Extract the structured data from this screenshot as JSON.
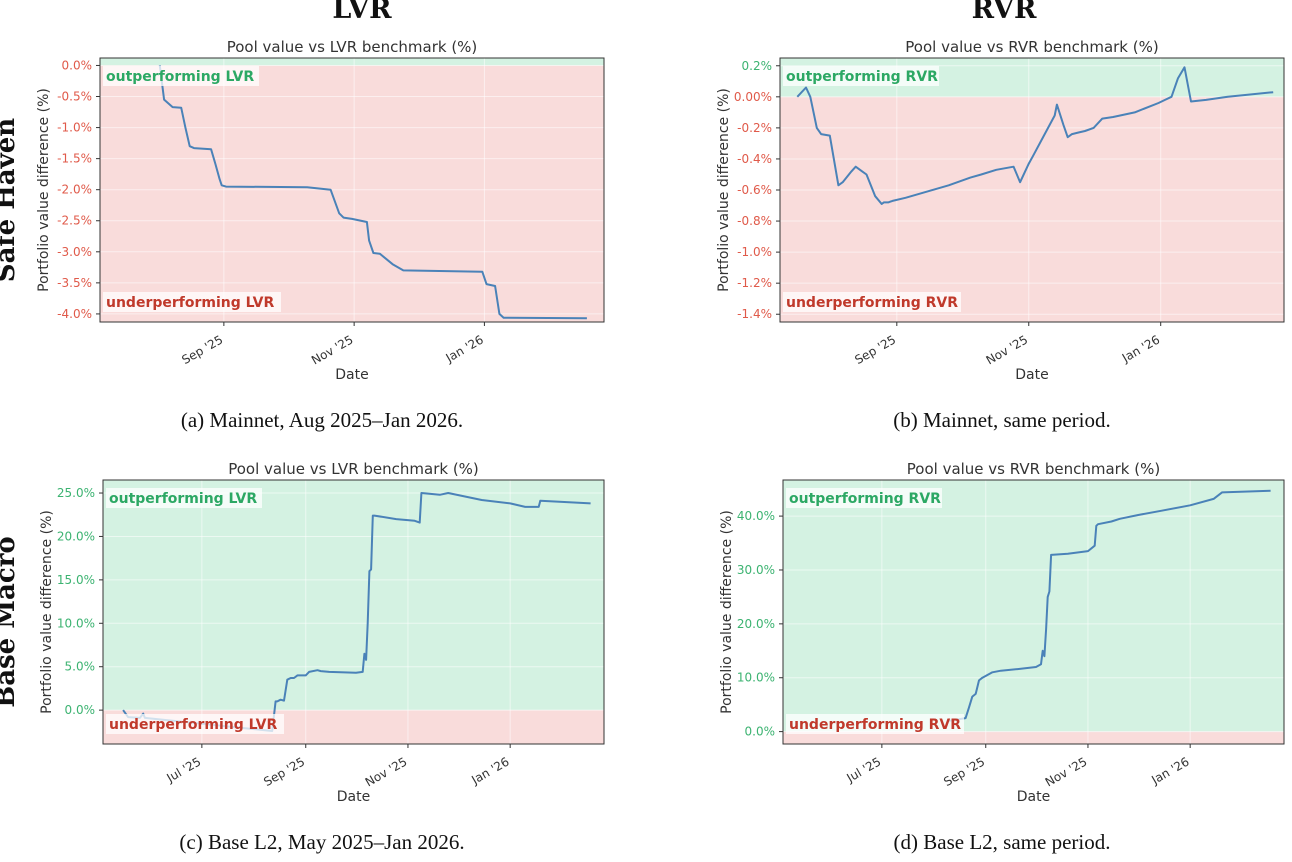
{
  "figure": {
    "column_headers": [
      "LVR",
      "RVR"
    ],
    "row_headers": [
      "Safe Haven",
      "Base Macro"
    ],
    "colors": {
      "line": "#4a82b8",
      "outperform_fill": "#d4f2e2",
      "underperform_fill": "#f9dcdb",
      "outperform_text": "#2ca864",
      "underperform_text": "#c0392b",
      "neg_tick": "#e05a4a",
      "pos_tick": "#3cb371"
    }
  },
  "chart_data": [
    {
      "type": "line",
      "panel": "a",
      "title": "Pool value vs LVR benchmark (%)",
      "xlabel": "Date",
      "ylabel": "Portfolio value difference (%)",
      "caption": "(a) Mainnet, Aug 2025–Jan 2026.",
      "outperform_label": "outperforming LVR",
      "underperform_label": "underperforming LVR",
      "x_ticks": [
        {
          "date": "2025-09-01",
          "label": "Sep '25"
        },
        {
          "date": "2025-11-01",
          "label": "Nov '25"
        },
        {
          "date": "2026-01-01",
          "label": "Jan '26"
        }
      ],
      "y_ticks": [
        0,
        -0.5,
        -1,
        -1.5,
        -2,
        -2.5,
        -3,
        -3.5,
        -4
      ],
      "y_tick_labels": [
        "0.0%",
        "-0.5%",
        "-1.0%",
        "-1.5%",
        "-2.0%",
        "-2.5%",
        "-3.0%",
        "-3.5%",
        "-4.0%"
      ],
      "xlim": [
        "2025-07-05",
        "2026-02-26"
      ],
      "ylim": [
        -4.13,
        0.12
      ],
      "series": [
        {
          "x": [
            "2025-08-02",
            "2025-08-04",
            "2025-08-08",
            "2025-08-12",
            "2025-08-14",
            "2025-08-16",
            "2025-08-18",
            "2025-08-26",
            "2025-08-28",
            "2025-08-30",
            "2025-08-31",
            "2025-09-02",
            "2025-10-10",
            "2025-10-21",
            "2025-10-25",
            "2025-10-27",
            "2025-10-31",
            "2025-11-07",
            "2025-11-08",
            "2025-11-10",
            "2025-11-13",
            "2025-11-19",
            "2025-11-24",
            "2025-12-31",
            "2026-01-02",
            "2026-01-06",
            "2026-01-08",
            "2026-01-10",
            "2026-02-18"
          ],
          "y": [
            0.0,
            -0.55,
            -0.67,
            -0.68,
            -1.0,
            -1.3,
            -1.33,
            -1.35,
            -1.58,
            -1.83,
            -1.93,
            -1.95,
            -1.96,
            -2.0,
            -2.38,
            -2.45,
            -2.47,
            -2.52,
            -2.82,
            -3.02,
            -3.03,
            -3.2,
            -3.3,
            -3.32,
            -3.52,
            -3.55,
            -4.0,
            -4.06,
            -4.07
          ]
        }
      ]
    },
    {
      "type": "line",
      "panel": "b",
      "title": "Pool value vs RVR benchmark (%)",
      "xlabel": "Date",
      "ylabel": "Portfolio value difference (%)",
      "caption": "(b) Mainnet, same period.",
      "outperform_label": "outperforming RVR",
      "underperform_label": "underperforming RVR",
      "x_ticks": [
        {
          "date": "2025-09-01",
          "label": "Sep '25"
        },
        {
          "date": "2025-11-01",
          "label": "Nov '25"
        },
        {
          "date": "2026-01-01",
          "label": "Jan '26"
        }
      ],
      "y_ticks": [
        0.2,
        0,
        -0.2,
        -0.4,
        -0.6,
        -0.8,
        -1.0,
        -1.2,
        -1.4
      ],
      "y_tick_labels": [
        "0.2%",
        "0.00%",
        "-0.2%",
        "-0.4%",
        "-0.6%",
        "-0.8%",
        "-1.0%",
        "-1.2%",
        "-1.4%"
      ],
      "xlim": [
        "2025-07-09",
        "2026-02-27"
      ],
      "ylim": [
        -1.45,
        0.25
      ],
      "series": [
        {
          "x": [
            "2025-07-17",
            "2025-07-21",
            "2025-07-23",
            "2025-07-26",
            "2025-07-28",
            "2025-08-01",
            "2025-08-05",
            "2025-08-07",
            "2025-08-11",
            "2025-08-13",
            "2025-08-16",
            "2025-08-18",
            "2025-08-22",
            "2025-08-25",
            "2025-08-26",
            "2025-08-28",
            "2025-08-30",
            "2025-09-05",
            "2025-09-15",
            "2025-09-25",
            "2025-10-05",
            "2025-10-10",
            "2025-10-17",
            "2025-10-25",
            "2025-10-28",
            "2025-11-01",
            "2025-11-03",
            "2025-11-08",
            "2025-11-13",
            "2025-11-14",
            "2025-11-17",
            "2025-11-19",
            "2025-11-21",
            "2025-11-24",
            "2025-11-27",
            "2025-12-01",
            "2025-12-05",
            "2025-12-10",
            "2025-12-20",
            "2025-12-31",
            "2026-01-03",
            "2026-01-06",
            "2026-01-09",
            "2026-01-12",
            "2026-01-15",
            "2026-01-22",
            "2026-02-01",
            "2026-02-22"
          ],
          "y": [
            0.0,
            0.06,
            0.0,
            -0.2,
            -0.24,
            -0.25,
            -0.57,
            -0.55,
            -0.48,
            -0.45,
            -0.48,
            -0.5,
            -0.64,
            -0.69,
            -0.68,
            -0.68,
            -0.67,
            -0.65,
            -0.61,
            -0.57,
            -0.52,
            -0.5,
            -0.47,
            -0.45,
            -0.55,
            -0.43,
            -0.38,
            -0.25,
            -0.12,
            -0.05,
            -0.18,
            -0.26,
            -0.24,
            -0.23,
            -0.22,
            -0.2,
            -0.14,
            -0.13,
            -0.1,
            -0.04,
            -0.02,
            0.0,
            0.12,
            0.19,
            -0.03,
            -0.02,
            0.0,
            0.03
          ]
        }
      ]
    },
    {
      "type": "line",
      "panel": "c",
      "title": "Pool value vs LVR benchmark (%)",
      "xlabel": "Date",
      "ylabel": "Portfolio value difference (%)",
      "caption": "(c) Base L2, May 2025–Jan 2026.",
      "outperform_label": "outperforming LVR",
      "underperform_label": "underperforming LVR",
      "x_ticks": [
        {
          "date": "2025-07-01",
          "label": "Jul '25"
        },
        {
          "date": "2025-09-01",
          "label": "Sep '25"
        },
        {
          "date": "2025-11-01",
          "label": "Nov '25"
        },
        {
          "date": "2026-01-01",
          "label": "Jan '26"
        }
      ],
      "y_ticks": [
        25,
        20,
        15,
        10,
        5,
        0
      ],
      "y_tick_labels": [
        "25.0%",
        "20.0%",
        "15.0%",
        "10.0%",
        "5.0%",
        "0.0%"
      ],
      "xlim": [
        "2025-05-03",
        "2026-02-26"
      ],
      "ylim": [
        -3.9,
        26.5
      ],
      "series": [
        {
          "x": [
            "2025-05-15",
            "2025-05-18",
            "2025-05-25",
            "2025-05-27",
            "2025-05-28",
            "2025-08-12",
            "2025-08-14",
            "2025-08-15",
            "2025-08-17",
            "2025-08-19",
            "2025-08-21",
            "2025-08-23",
            "2025-08-25",
            "2025-08-27",
            "2025-09-01",
            "2025-09-03",
            "2025-09-08",
            "2025-09-10",
            "2025-09-15",
            "2025-10-01",
            "2025-10-05",
            "2025-10-06",
            "2025-10-07",
            "2025-10-08",
            "2025-10-09",
            "2025-10-10",
            "2025-10-11",
            "2025-10-12",
            "2025-10-25",
            "2025-11-05",
            "2025-11-08",
            "2025-11-09",
            "2025-11-20",
            "2025-11-25",
            "2025-12-15",
            "2026-01-01",
            "2026-01-10",
            "2026-01-18",
            "2026-01-19",
            "2026-02-18"
          ],
          "y": [
            0.0,
            -0.8,
            -0.9,
            -0.4,
            -0.9,
            -2.4,
            1.0,
            1.0,
            1.2,
            1.1,
            3.5,
            3.7,
            3.7,
            4.0,
            4.0,
            4.4,
            4.6,
            4.5,
            4.4,
            4.3,
            4.4,
            6.5,
            5.8,
            10.0,
            16.0,
            16.2,
            22.4,
            22.4,
            22.0,
            21.8,
            21.6,
            25.0,
            24.8,
            25.0,
            24.2,
            23.8,
            23.4,
            23.4,
            24.1,
            23.8
          ]
        }
      ]
    },
    {
      "type": "line",
      "panel": "d",
      "title": "Pool value vs RVR benchmark (%)",
      "xlabel": "Date",
      "ylabel": "Portfolio value difference (%)",
      "caption": "(d) Base L2, same period.",
      "outperform_label": "outperforming RVR",
      "underperform_label": "underperforming RVR",
      "x_ticks": [
        {
          "date": "2025-07-01",
          "label": "Jul '25"
        },
        {
          "date": "2025-09-01",
          "label": "Sep '25"
        },
        {
          "date": "2025-11-01",
          "label": "Nov '25"
        },
        {
          "date": "2026-01-01",
          "label": "Jan '26"
        }
      ],
      "y_ticks": [
        40,
        30,
        20,
        10,
        0
      ],
      "y_tick_labels": [
        "40.0%",
        "30.0%",
        "20.0%",
        "10.0%",
        "0.0%"
      ],
      "xlim": [
        "2025-05-03",
        "2026-02-26"
      ],
      "ylim": [
        -2.3,
        46.7
      ],
      "series": [
        {
          "x": [
            "2025-08-10",
            "2025-08-20",
            "2025-08-22",
            "2025-08-24",
            "2025-08-26",
            "2025-08-28",
            "2025-08-30",
            "2025-09-02",
            "2025-09-05",
            "2025-09-10",
            "2025-09-20",
            "2025-10-01",
            "2025-10-04",
            "2025-10-05",
            "2025-10-06",
            "2025-10-07",
            "2025-10-08",
            "2025-10-09",
            "2025-10-10",
            "2025-10-20",
            "2025-11-01",
            "2025-11-05",
            "2025-11-06",
            "2025-11-07",
            "2025-11-15",
            "2025-11-20",
            "2025-12-01",
            "2025-12-15",
            "2026-01-01",
            "2026-01-15",
            "2026-01-20",
            "2026-02-18"
          ],
          "y": [
            2.0,
            2.5,
            4.5,
            6.5,
            7.0,
            9.5,
            10.0,
            10.5,
            11.0,
            11.3,
            11.6,
            12.0,
            12.5,
            15.0,
            14.0,
            19.0,
            25.0,
            26.0,
            32.8,
            33.0,
            33.5,
            34.5,
            38.2,
            38.5,
            39.0,
            39.5,
            40.2,
            41.0,
            42.0,
            43.2,
            44.4,
            44.7
          ]
        }
      ]
    }
  ]
}
